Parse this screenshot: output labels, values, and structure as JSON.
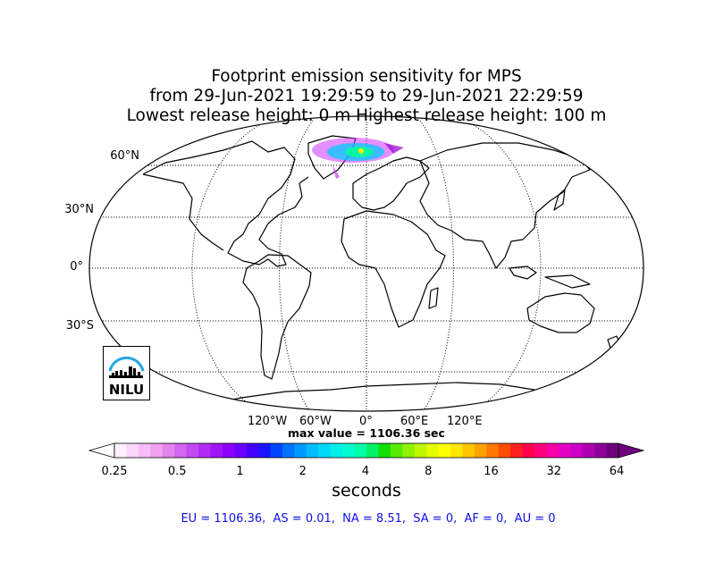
{
  "title": {
    "line1": "Footprint emission sensitivity for MPS",
    "line2": "from 29-Jun-2021 19:29:59 to 29-Jun-2021 22:29:59",
    "line3": "Lowest release height: 0 m       Highest release height: 100 m"
  },
  "map": {
    "projection": "robinson",
    "lat_labels": [
      "60°N",
      "30°N",
      "0°",
      "30°S"
    ],
    "lon_labels": [
      "120°W",
      "60°W",
      "0°",
      "60°E",
      "120°E"
    ]
  },
  "max_value": "max value = 1106.36 sec",
  "colorbar": {
    "ticks": [
      "0.25",
      "0.5",
      "1",
      "2",
      "4",
      "8",
      "16",
      "32",
      "64"
    ],
    "unit": "seconds",
    "colors": [
      "#fff0ff",
      "#fbd8fb",
      "#f5bdf5",
      "#eda1ee",
      "#e184eb",
      "#d266ec",
      "#c24af0",
      "#b32cf4",
      "#a014f8",
      "#8d00fb",
      "#6c00ff",
      "#4400ff",
      "#1d14ff",
      "#0046ff",
      "#0072ff",
      "#009aff",
      "#00bcff",
      "#00d8f8",
      "#00eee8",
      "#00fcd0",
      "#00ffa6",
      "#00f266",
      "#12de00",
      "#56ea00",
      "#8ef200",
      "#bdf800",
      "#e3fc00",
      "#fffd00",
      "#ffe600",
      "#ffc600",
      "#ffa200",
      "#ff7a00",
      "#ff4c00",
      "#ff1e20",
      "#ff004a",
      "#ff007a",
      "#f700a6",
      "#e600c4",
      "#cc00c8",
      "#ad00b2",
      "#8c0098",
      "#6e007e"
    ]
  },
  "regions": "EU = 1106.36,  AS = 0.01,  NA = 8.51,  SA = 0,  AF = 0,  AU = 0",
  "logo": {
    "text": "NILU",
    "arc_color": "#1fa7e6"
  }
}
